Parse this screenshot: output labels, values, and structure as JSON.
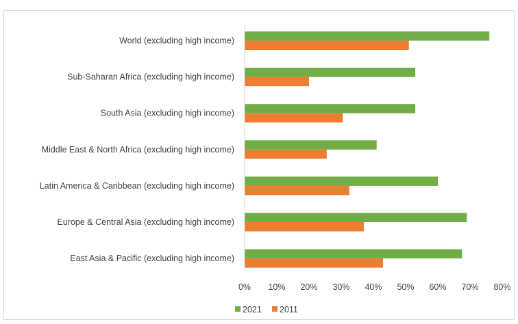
{
  "chart_data": {
    "type": "bar",
    "orientation": "horizontal",
    "categories": [
      "World (excluding high income)",
      "Sub-Saharan Africa (excluding high income)",
      "South Asia (excluding high income)",
      "Middle East & North Africa (excluding high income)",
      "Latin America & Caribbean (excluding high income)",
      "Europe & Central Asia (excluding high income)",
      "East Asia & Pacific (excluding high income)"
    ],
    "series": [
      {
        "name": "2021",
        "color": "#70ad47",
        "values": [
          76,
          53,
          53,
          41,
          60,
          69,
          67.5
        ]
      },
      {
        "name": "2011",
        "color": "#ed7d31",
        "values": [
          51,
          20,
          30.5,
          25.5,
          32.5,
          37,
          43
        ]
      }
    ],
    "xticks": [
      "0%",
      "10%",
      "20%",
      "30%",
      "40%",
      "50%",
      "60%",
      "70%",
      "80%"
    ],
    "xlim": [
      0,
      80
    ],
    "grid": false,
    "legend_position": "bottom",
    "title": "",
    "xlabel": "",
    "ylabel": ""
  }
}
